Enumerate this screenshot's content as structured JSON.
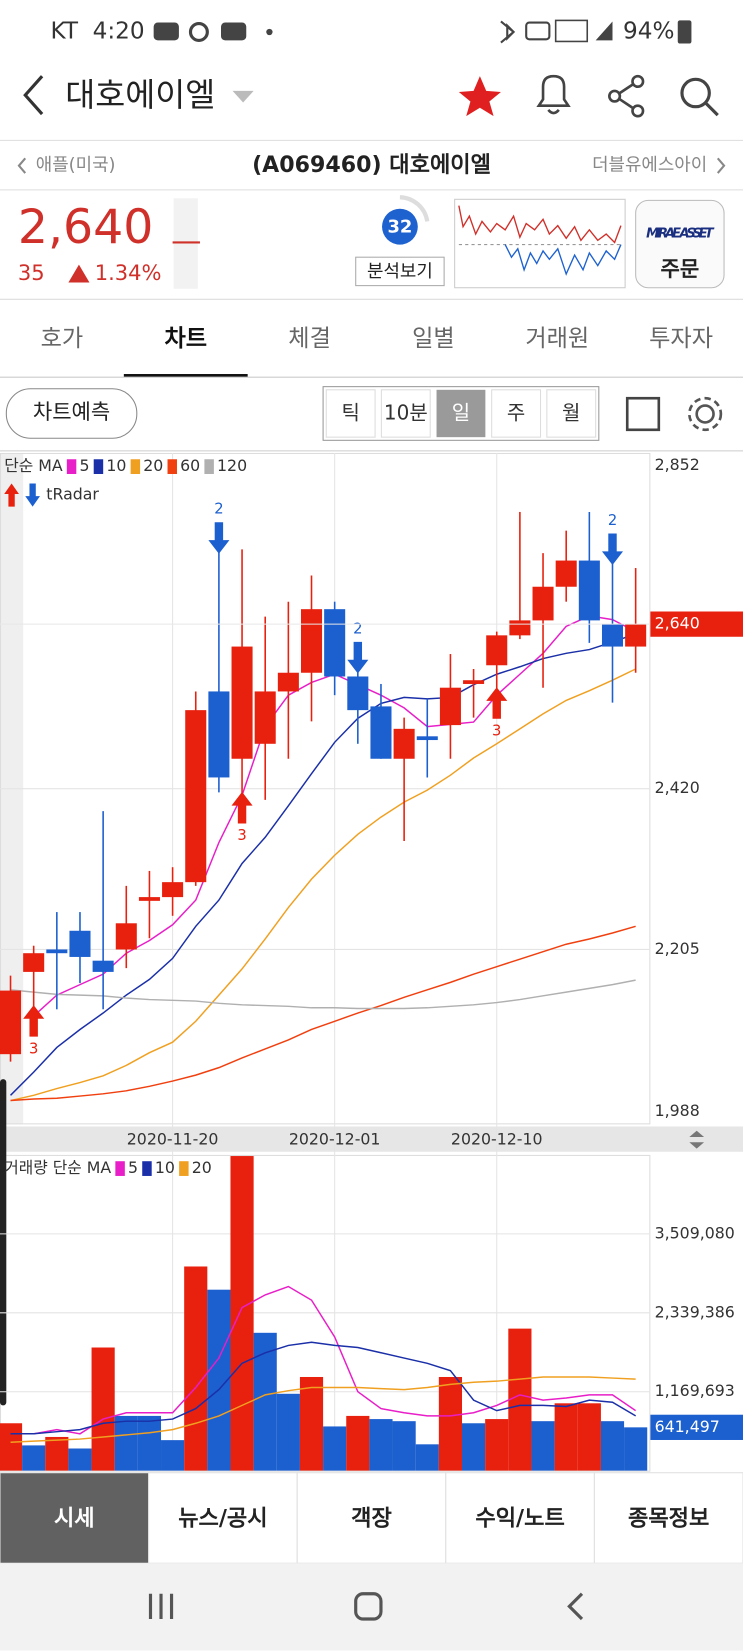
{
  "status_bar": {
    "carrier": "KT",
    "time": "4:20",
    "battery": "94%"
  },
  "header": {
    "title": "대호에이엘"
  },
  "stock_nav": {
    "prev": "애플(미국)",
    "current": "(A069460) 대호에이엘",
    "next": "더블유에스아이"
  },
  "quote": {
    "price": "2,640",
    "change": "35",
    "change_rate": "1.34%",
    "analysis_score": "32",
    "analysis_button": "분석보기",
    "order_brand": "MIRAE ASSET",
    "order_button": "주문"
  },
  "tabs": {
    "items": [
      "호가",
      "차트",
      "체결",
      "일별",
      "거래원",
      "투자자"
    ],
    "active": 1
  },
  "chart_toolbar": {
    "predict_button": "차트예측",
    "periods": [
      "틱",
      "10분",
      "일",
      "주",
      "월"
    ],
    "active_period": 2
  },
  "chart_data": [
    {
      "type": "candlestick",
      "legend_label": "단순 MA",
      "signal_label": "tRadar",
      "categories": [
        null,
        null,
        null,
        null,
        null,
        null,
        null,
        "2020-11-20",
        null,
        null,
        null,
        null,
        null,
        null,
        "2020-12-01",
        null,
        null,
        null,
        null,
        null,
        null,
        "2020-12-10",
        null,
        null,
        null,
        null,
        null,
        null
      ],
      "open": [
        2065,
        2175,
        2205,
        2230,
        2190,
        2205,
        2270,
        2275,
        2295,
        2550,
        2460,
        2480,
        2550,
        2575,
        2660,
        2570,
        2530,
        2460,
        2490,
        2505,
        2560,
        2585,
        2625,
        2645,
        2690,
        2725,
        2640,
        2610
      ],
      "high": [
        2170,
        2210,
        2255,
        2255,
        2390,
        2290,
        2310,
        2315,
        2550,
        2765,
        2740,
        2650,
        2670,
        2705,
        2670,
        2605,
        2560,
        2515,
        2540,
        2600,
        2580,
        2630,
        2790,
        2735,
        2765,
        2790,
        2750,
        2715
      ],
      "low": [
        2055,
        2125,
        2125,
        2160,
        2125,
        2180,
        2220,
        2250,
        2290,
        2415,
        2410,
        2405,
        2460,
        2510,
        2545,
        2480,
        2460,
        2350,
        2435,
        2460,
        2515,
        2550,
        2620,
        2555,
        2670,
        2615,
        2535,
        2575
      ],
      "close": [
        2150,
        2200,
        2200,
        2195,
        2175,
        2240,
        2275,
        2295,
        2525,
        2435,
        2610,
        2550,
        2575,
        2660,
        2570,
        2525,
        2460,
        2500,
        2485,
        2555,
        2565,
        2625,
        2645,
        2690,
        2725,
        2645,
        2610,
        2640
      ],
      "close_labels": [
        null,
        null,
        null,
        null,
        null,
        null,
        null,
        null,
        null,
        null,
        null,
        null,
        null,
        null,
        null,
        null,
        null,
        null,
        null,
        null,
        null,
        null,
        null,
        null,
        null,
        null,
        null,
        "2,640"
      ],
      "up_color": "#e8200e",
      "down_color": "#1c5fcf",
      "series": [
        {
          "name": "5",
          "color": "#e81ec8",
          "values": [
            null,
            2116,
            2144,
            2158,
            2172,
            2200,
            2217,
            2238,
            2271,
            2348,
            2411,
            2503,
            2545,
            2562,
            2573,
            2559,
            2545,
            2528,
            2503,
            2506,
            2509,
            2545,
            2573,
            2601,
            2637,
            2651,
            2646,
            2630
          ]
        },
        {
          "name": "10",
          "color": "#1a2fa8",
          "values": [
            2010,
            2041,
            2074,
            2098,
            2120,
            2144,
            2165,
            2193,
            2236,
            2271,
            2320,
            2355,
            2397,
            2440,
            2482,
            2514,
            2534,
            2542,
            2540,
            2542,
            2559,
            2573,
            2583,
            2594,
            2601,
            2606,
            2616,
            2627
          ]
        },
        {
          "name": "20",
          "color": "#f0a020",
          "values": [
            2003,
            2010,
            2019,
            2027,
            2036,
            2050,
            2067,
            2081,
            2109,
            2144,
            2179,
            2219,
            2261,
            2299,
            2331,
            2359,
            2382,
            2402,
            2418,
            2438,
            2461,
            2480,
            2500,
            2520,
            2538,
            2551,
            2565,
            2580
          ]
        },
        {
          "name": "60",
          "color": "#f04010",
          "values": [
            2003,
            2005,
            2006,
            2009,
            2012,
            2016,
            2022,
            2029,
            2037,
            2047,
            2060,
            2072,
            2084,
            2098,
            2109,
            2120,
            2130,
            2141,
            2151,
            2161,
            2172,
            2182,
            2192,
            2202,
            2212,
            2219,
            2227,
            2236
          ]
        },
        {
          "name": "120",
          "color": "#b0b0b0",
          "values": [
            2151,
            2148,
            2145,
            2144,
            2143,
            2140,
            2138,
            2137,
            2136,
            2133,
            2131,
            2130,
            2129,
            2127,
            2127,
            2126,
            2126,
            2126,
            2127,
            2129,
            2131,
            2134,
            2138,
            2143,
            2148,
            2153,
            2158,
            2164
          ]
        }
      ],
      "signals_up": [
        null,
        "3",
        null,
        null,
        null,
        null,
        null,
        null,
        null,
        null,
        "3",
        null,
        null,
        null,
        null,
        null,
        null,
        null,
        null,
        null,
        null,
        "3",
        null,
        null,
        null,
        null,
        null,
        null
      ],
      "signals_down": [
        null,
        null,
        null,
        null,
        null,
        null,
        null,
        null,
        null,
        "2",
        null,
        null,
        null,
        null,
        null,
        "2",
        null,
        null,
        null,
        null,
        null,
        null,
        null,
        null,
        null,
        null,
        "2",
        null
      ],
      "ylim": [
        1988,
        2852
      ],
      "yticks": [
        {
          "value": 2852,
          "label": "2,852"
        },
        {
          "value": 2420,
          "label": "2,420"
        },
        {
          "value": 2205,
          "label": "2,205"
        },
        {
          "value": 1988,
          "label": "1,988"
        }
      ],
      "grid": true
    },
    {
      "type": "bar",
      "legend_label": "거래량 단순 MA",
      "values": [
        702000,
        374000,
        499000,
        328000,
        1825000,
        811000,
        811000,
        452000,
        3026000,
        2682000,
        4663000,
        2043000,
        1139000,
        1388000,
        655000,
        811000,
        764000,
        733000,
        390000,
        1388000,
        702000,
        764000,
        2105000,
        733000,
        998000,
        998000,
        733000,
        641497
      ],
      "value_labels": [
        null,
        null,
        null,
        null,
        null,
        null,
        null,
        null,
        null,
        null,
        null,
        null,
        null,
        null,
        null,
        null,
        null,
        null,
        null,
        null,
        null,
        null,
        null,
        null,
        null,
        null,
        null,
        "641,497"
      ],
      "colors": [
        "#e8200e",
        "#1c5fcf",
        "#e8200e",
        "#1c5fcf",
        "#e8200e",
        "#1c5fcf",
        "#1c5fcf",
        "#1c5fcf",
        "#e8200e",
        "#1c5fcf",
        "#e8200e",
        "#1c5fcf",
        "#1c5fcf",
        "#e8200e",
        "#1c5fcf",
        "#e8200e",
        "#1c5fcf",
        "#1c5fcf",
        "#1c5fcf",
        "#e8200e",
        "#1c5fcf",
        "#e8200e",
        "#e8200e",
        "#1c5fcf",
        "#e8200e",
        "#e8200e",
        "#1c5fcf",
        "#1c5fcf"
      ],
      "series": [
        {
          "name": "5",
          "color": "#e81ec8",
          "values": [
            546000,
            546000,
            608000,
            546000,
            764000,
            858000,
            858000,
            858000,
            1232000,
            1669000,
            2417000,
            2605000,
            2729000,
            2527000,
            1981000,
            1170000,
            920000,
            858000,
            811000,
            811000,
            858000,
            967000,
            1123000,
            1045000,
            1076000,
            1123000,
            1123000,
            889000
          ]
        },
        {
          "name": "10",
          "color": "#1a2fa8",
          "values": [
            546000,
            546000,
            577000,
            608000,
            702000,
            733000,
            733000,
            764000,
            920000,
            1201000,
            1591000,
            1747000,
            1856000,
            1903000,
            1856000,
            1825000,
            1747000,
            1669000,
            1591000,
            1482000,
            1045000,
            889000,
            967000,
            967000,
            951000,
            1045000,
            1014000,
            811000
          ]
        },
        {
          "name": "20",
          "color": "#f0a020",
          "values": [
            421000,
            437000,
            452000,
            468000,
            499000,
            530000,
            561000,
            608000,
            702000,
            811000,
            967000,
            1123000,
            1185000,
            1232000,
            1232000,
            1232000,
            1216000,
            1201000,
            1232000,
            1279000,
            1310000,
            1326000,
            1357000,
            1388000,
            1388000,
            1388000,
            1372000,
            1357000
          ]
        }
      ],
      "ylim": [
        0,
        4680000
      ],
      "yticks": [
        {
          "value": 1169693,
          "label": "1,169,693"
        },
        {
          "value": 2339386,
          "label": "2,339,386"
        },
        {
          "value": 3509080,
          "label": "3,509,080"
        }
      ],
      "grid": true
    }
  ],
  "bottom_tabs": {
    "items": [
      "시세",
      "뉴스/공시",
      "객장",
      "수익/노트",
      "종목정보"
    ],
    "active": 0
  }
}
